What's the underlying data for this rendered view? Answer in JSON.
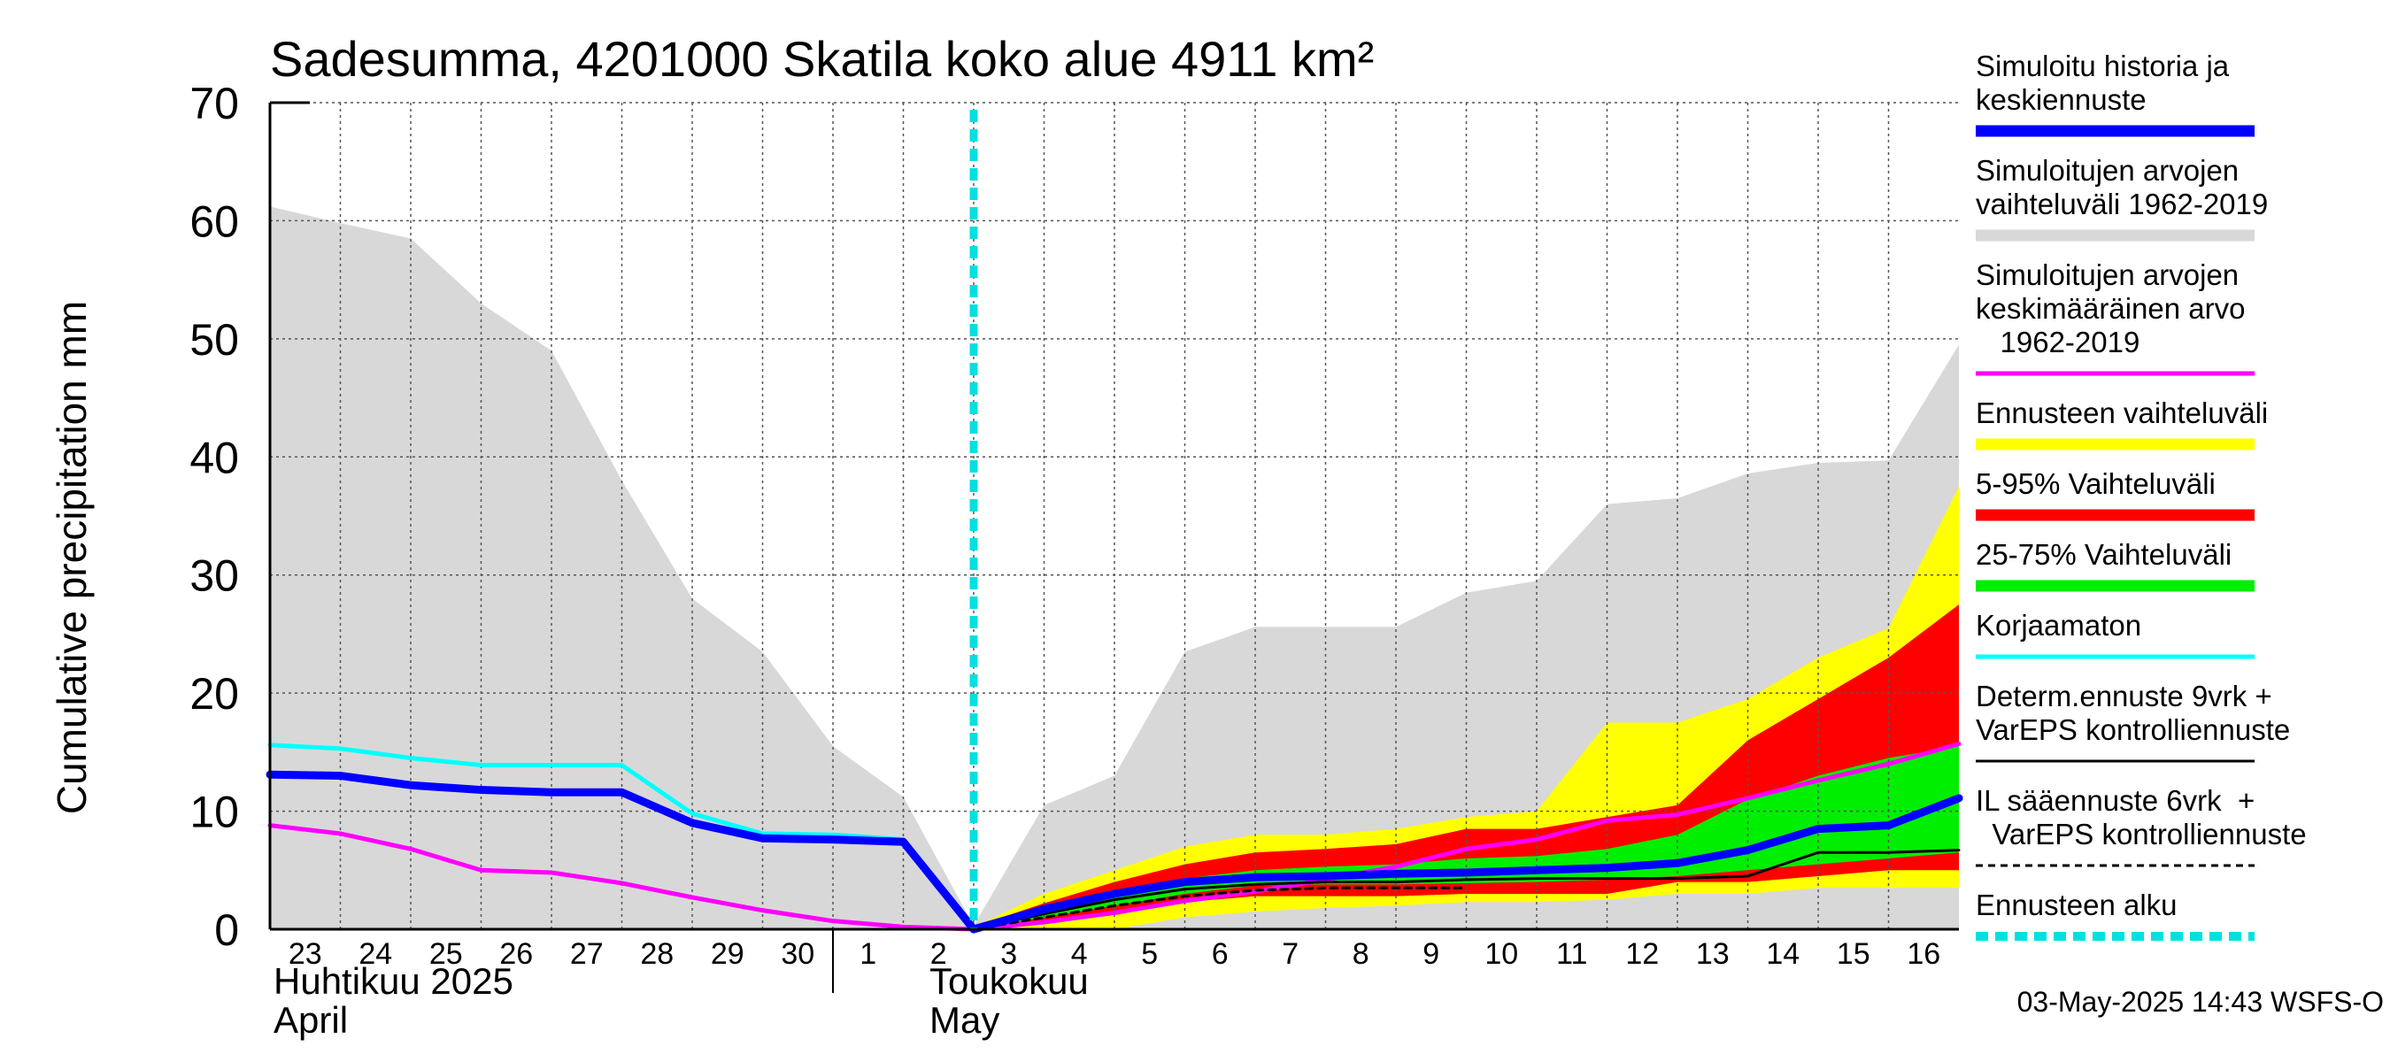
{
  "chart_data": {
    "type": "area",
    "title": "Sadesumma, 4201000 Skatila koko alue 4911 km²",
    "ylabel": "Cumulative precipitation   mm",
    "ylim": [
      0,
      70
    ],
    "yticks": [
      0,
      10,
      20,
      30,
      40,
      50,
      60,
      70
    ],
    "x_day_labels": [
      "23",
      "24",
      "25",
      "26",
      "27",
      "28",
      "29",
      "30",
      "1",
      "2",
      "3",
      "4",
      "5",
      "6",
      "7",
      "8",
      "9",
      "10",
      "11",
      "12",
      "13",
      "14",
      "15",
      "16"
    ],
    "month_labels": [
      {
        "line1": "Huhtikuu  2025",
        "line2": "April"
      },
      {
        "line1": "Toukokuu",
        "line2": "May"
      }
    ],
    "forecast_start_day": 10,
    "series": [
      {
        "name": "Simuloitujen arvojen vaihteluväli 1962-2019",
        "kind": "band",
        "color": "#d8d8d8",
        "x": [
          0,
          1,
          2,
          3,
          4,
          5,
          6,
          7,
          8,
          9,
          10,
          11,
          12,
          13,
          14,
          15,
          16,
          17,
          18,
          19,
          20,
          21,
          22,
          23,
          24
        ],
        "upper": [
          61.2,
          59.8,
          58.5,
          53,
          49,
          38,
          28,
          23.5,
          15.5,
          11.2,
          0.3,
          10.5,
          13,
          23.5,
          25.6,
          25.6,
          25.6,
          28.5,
          29.5,
          36,
          36.5,
          38.6,
          39.5,
          39.7,
          49.5
        ],
        "lower": [
          0,
          0,
          0,
          0,
          0,
          0,
          0,
          0,
          0,
          0,
          0,
          0,
          0,
          0,
          0,
          0,
          0,
          0,
          0,
          0,
          0,
          0,
          0,
          0,
          0
        ]
      },
      {
        "name": "Ennusteen vaihteluväli",
        "kind": "band",
        "color": "#ffff00",
        "x": [
          10,
          11,
          12,
          13,
          14,
          15,
          16,
          17,
          18,
          19,
          20,
          21,
          22,
          23,
          24
        ],
        "upper": [
          0.2,
          3,
          5,
          7,
          8,
          8,
          8.5,
          9.5,
          10,
          17.5,
          17.5,
          19.5,
          23,
          25.5,
          37.5
        ],
        "lower": [
          0,
          0,
          0,
          1,
          1.5,
          1.8,
          2,
          2.3,
          2.3,
          2.5,
          3,
          3,
          3.5,
          3.5,
          3.5
        ]
      },
      {
        "name": "5-95% Vaihteluväli",
        "kind": "band",
        "color": "#ff0000",
        "x": [
          10,
          11,
          12,
          13,
          14,
          15,
          16,
          17,
          18,
          19,
          20,
          21,
          22,
          23,
          24
        ],
        "upper": [
          0.2,
          2.2,
          4,
          5.5,
          6.5,
          6.8,
          7.2,
          8.5,
          8.5,
          9.5,
          10.5,
          16,
          19.5,
          23,
          27.5
        ],
        "lower": [
          0,
          0.5,
          1.2,
          2.3,
          2.8,
          2.8,
          2.8,
          3,
          3,
          3,
          4,
          4,
          4.5,
          5,
          5
        ]
      },
      {
        "name": "25-75% Vaihteluväli",
        "kind": "band",
        "color": "#00ee00",
        "x": [
          10,
          11,
          12,
          13,
          14,
          15,
          16,
          17,
          18,
          19,
          20,
          21,
          22,
          23,
          24
        ],
        "upper": [
          0.1,
          1.5,
          3,
          4.3,
          5,
          5.3,
          5.5,
          6,
          6.2,
          6.8,
          8,
          11,
          13,
          14.5,
          15.5
        ],
        "lower": [
          0,
          1,
          2,
          3,
          3.7,
          3.8,
          3.8,
          3.9,
          4,
          4.2,
          4.5,
          5,
          5.5,
          6,
          6.5
        ]
      },
      {
        "name": "Simuloitujen arvojen keskimääräinen arvo 1962-2019",
        "kind": "line",
        "color": "#ff00ff",
        "width": 5,
        "x": [
          0,
          1,
          2,
          3,
          4,
          5,
          6,
          7,
          8,
          9,
          10,
          11,
          12,
          13,
          14,
          15,
          16,
          17,
          18,
          19,
          20,
          21,
          22,
          23,
          24
        ],
        "y": [
          8.8,
          8.1,
          6.8,
          5,
          4.8,
          3.9,
          2.7,
          1.6,
          0.7,
          0.2,
          0,
          0.6,
          1.4,
          2.4,
          3.2,
          4.2,
          5.3,
          6.8,
          7.6,
          9.2,
          9.7,
          11.1,
          12.6,
          14,
          15.7
        ]
      },
      {
        "name": "Korjaamaton",
        "kind": "line",
        "color": "#00ffff",
        "width": 5,
        "x": [
          0,
          1,
          2,
          3,
          4,
          5,
          6,
          7,
          8,
          9,
          10
        ],
        "y": [
          15.6,
          15.3,
          14.5,
          13.9,
          13.9,
          13.9,
          9.8,
          8.1,
          8,
          7.6,
          0.1
        ]
      },
      {
        "name": "Determ.ennuste 9vrk + VarEPS kontrolliennuste",
        "kind": "line",
        "color": "#000000",
        "width": 3,
        "x": [
          10,
          11,
          12,
          13,
          14,
          15,
          16,
          17,
          18,
          19,
          20,
          21,
          22,
          23,
          24
        ],
        "y": [
          0,
          1.3,
          2.5,
          3.4,
          3.8,
          4,
          4,
          4.2,
          4.3,
          4.3,
          4.3,
          4.5,
          6.5,
          6.5,
          6.7
        ]
      },
      {
        "name": "IL sääennuste 6vrk + VarEPS kontrolliennuste",
        "kind": "line",
        "color": "#000000",
        "width": 3,
        "dash": true,
        "x": [
          10,
          11,
          12,
          13,
          14,
          15,
          16,
          17
        ],
        "y": [
          0,
          1,
          2,
          2.8,
          3.3,
          3.5,
          3.5,
          3.5
        ]
      },
      {
        "name": "Simuloitu historia ja keskiennuste",
        "kind": "line",
        "color": "#0000ff",
        "width": 9,
        "x": [
          0,
          1,
          2,
          3,
          4,
          5,
          6,
          7,
          8,
          9,
          10,
          11,
          12,
          13,
          14,
          15,
          16,
          17,
          18,
          19,
          20,
          21,
          22,
          23,
          24
        ],
        "y": [
          13.1,
          13,
          12.2,
          11.8,
          11.6,
          11.6,
          9,
          7.7,
          7.6,
          7.4,
          0,
          1.7,
          3,
          4,
          4.4,
          4.5,
          4.7,
          4.8,
          5,
          5.2,
          5.6,
          6.7,
          8.5,
          8.8,
          11.1
        ]
      }
    ]
  },
  "legend": {
    "items": [
      {
        "label_lines": [
          "Simuloitu historia ja",
          "keskiennuste"
        ],
        "color": "#0000ff",
        "style": "thick"
      },
      {
        "label_lines": [
          "Simuloitujen arvojen",
          "vaihteluväli 1962-2019"
        ],
        "color": "#d8d8d8",
        "style": "thick"
      },
      {
        "label_lines": [
          "Simuloitujen arvojen",
          "keskimääräinen arvo",
          "   1962-2019"
        ],
        "color": "#ff00ff",
        "style": "thin"
      },
      {
        "label_lines": [
          "Ennusteen vaihteluväli"
        ],
        "color": "#ffff00",
        "style": "thick"
      },
      {
        "label_lines": [
          "5-95% Vaihteluväli"
        ],
        "color": "#ff0000",
        "style": "thick"
      },
      {
        "label_lines": [
          "25-75% Vaihteluväli"
        ],
        "color": "#00ee00",
        "style": "thick"
      },
      {
        "label_lines": [
          "Korjaamaton"
        ],
        "color": "#00ffff",
        "style": "thin"
      },
      {
        "label_lines": [
          "Determ.ennuste 9vrk +",
          "VarEPS kontrolliennuste"
        ],
        "color": "#000000",
        "style": "line"
      },
      {
        "label_lines": [
          "IL sääennuste 6vrk  +",
          "  VarEPS kontrolliennuste"
        ],
        "color": "#000000",
        "style": "dashed"
      },
      {
        "label_lines": [
          "Ennusteen alku"
        ],
        "color": "#00e0e0",
        "style": "cyan-dashed"
      }
    ]
  },
  "footer": {
    "timestamp": "03-May-2025 14:43 WSFS-O"
  }
}
